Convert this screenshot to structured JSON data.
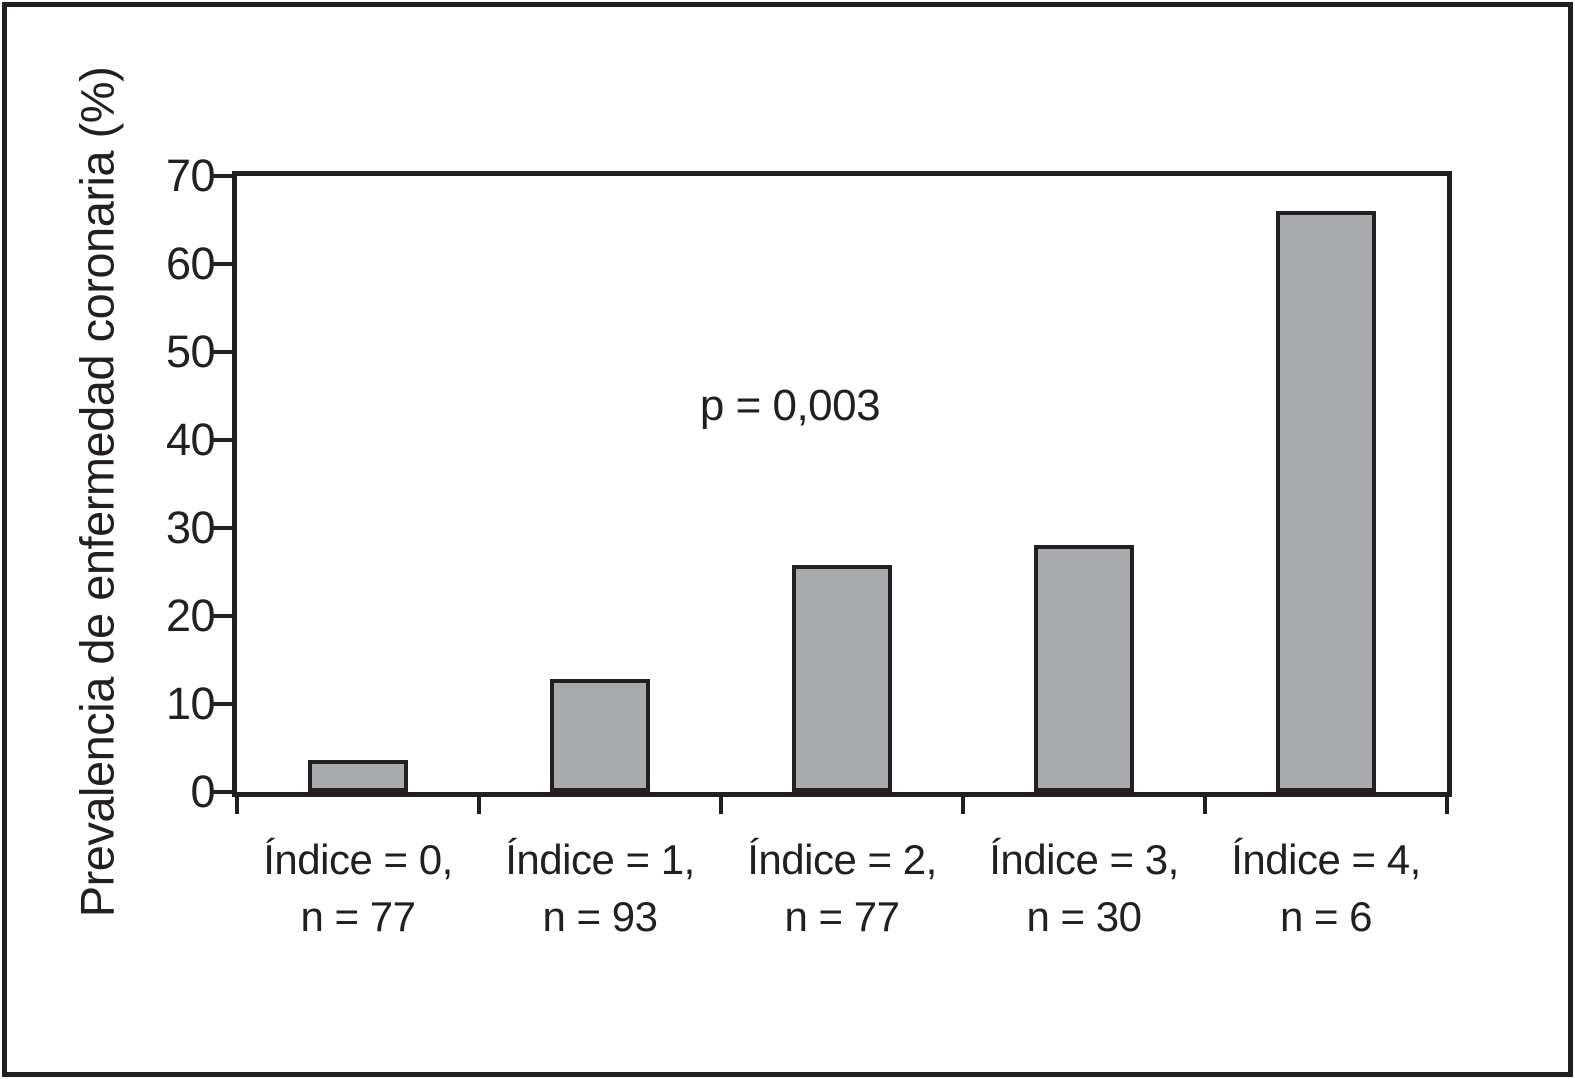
{
  "figure": {
    "background": "#ffffff",
    "line_color": "#231f20"
  },
  "chart_data": {
    "type": "bar",
    "title": "",
    "xlabel": "",
    "ylabel": "Prevalencia de enfermedad coronaria (%)",
    "ylim": [
      0,
      70
    ],
    "yticks": [
      0,
      10,
      20,
      30,
      40,
      50,
      60,
      70
    ],
    "grid": false,
    "legend": "none",
    "bar_color": "#a8aaad",
    "bar_border_color": "#231f20",
    "annotation": "p = 0,003",
    "categories": [
      "Índice = 0,\nn = 77",
      "Índice = 1,\nn = 93",
      "Índice = 2,\nn = 77",
      "Índice = 3,\nn = 30",
      "Índice = 4,\nn = 6"
    ],
    "category_lines": [
      {
        "index_label": "Índice = 0,",
        "n_label": "n = 77"
      },
      {
        "index_label": "Índice = 1,",
        "n_label": "n = 93"
      },
      {
        "index_label": "Índice = 2,",
        "n_label": "n = 77"
      },
      {
        "index_label": "Índice = 3,",
        "n_label": "n = 30"
      },
      {
        "index_label": "Índice = 4,",
        "n_label": "n = 6"
      }
    ],
    "values": [
      3.6,
      12.8,
      25.8,
      28.1,
      66.0
    ]
  }
}
